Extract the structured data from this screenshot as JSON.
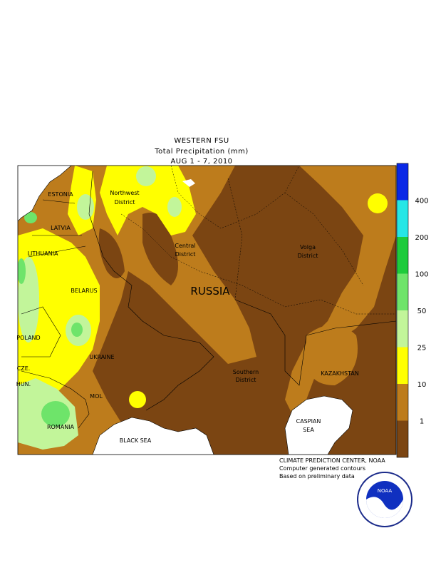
{
  "header": {
    "title": "WESTERN FSU",
    "subtitle": "Total Precipitation (mm)",
    "period": "AUG 1 - 7, 2010"
  },
  "map_labels": {
    "estonia": "ESTONIA",
    "latvia": "LATVIA",
    "lithuania": "LITHUANIA",
    "belarus": "BELARUS",
    "poland": "POLAND",
    "czech": "CZE.",
    "hungary": "HUN.",
    "ukraine": "UKRAINE",
    "moldova": "MOL",
    "romania": "ROMANIA",
    "black_sea": "BLACK SEA",
    "russia": "RUSSIA",
    "kazakhstan": "KAZAKHSTAN",
    "northwest": [
      "Northwest",
      "District"
    ],
    "central": [
      "Central",
      "District"
    ],
    "volga": [
      "Volga",
      "District"
    ],
    "southern": [
      "Southern",
      "District"
    ],
    "caspian": [
      "CASPIAN",
      "SEA"
    ]
  },
  "legend": {
    "colors": [
      "#7b4512",
      "#bd7c1c",
      "#ffff00",
      "#c2f59a",
      "#6ee46a",
      "#1ecb3c",
      "#26e6e6",
      "#0a28e6"
    ],
    "ticks": [
      1,
      10,
      25,
      50,
      100,
      200,
      400
    ]
  },
  "credits": [
    "CLIMATE PREDICTION CENTER, NOAA",
    "Computer generated contours",
    "Based on preliminary data"
  ],
  "logo": {
    "text": "NOAA"
  }
}
